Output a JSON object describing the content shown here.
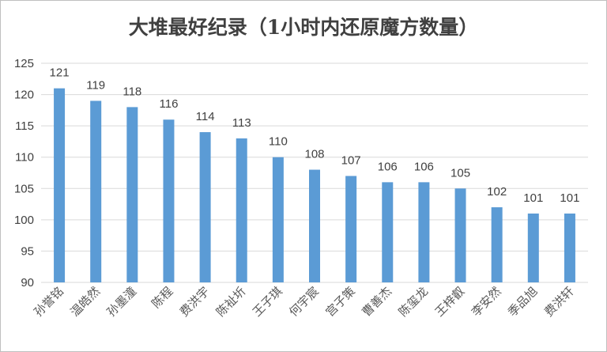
{
  "chart_data": {
    "type": "bar",
    "title": "大堆最好纪录（1小时内还原魔方数量）",
    "xlabel": "",
    "ylabel": "",
    "categories": [
      "孙誉铭",
      "温皓然",
      "孙墨潼",
      "陈程",
      "费洪宇",
      "陈祉圻",
      "王子琪",
      "何宇宸",
      "宫子策",
      "曹善杰",
      "陈玺龙",
      "王梓叡",
      "李安然",
      "季品旭",
      "费洪轩"
    ],
    "values": [
      121,
      119,
      118,
      116,
      114,
      113,
      110,
      108,
      107,
      106,
      106,
      105,
      102,
      101,
      101
    ],
    "ylim": [
      90,
      125
    ],
    "yticks": [
      90,
      95,
      100,
      105,
      110,
      115,
      120,
      125
    ],
    "grid": true,
    "bar_color": "#5b9bd5",
    "grid_color": "#d9d9d9"
  }
}
